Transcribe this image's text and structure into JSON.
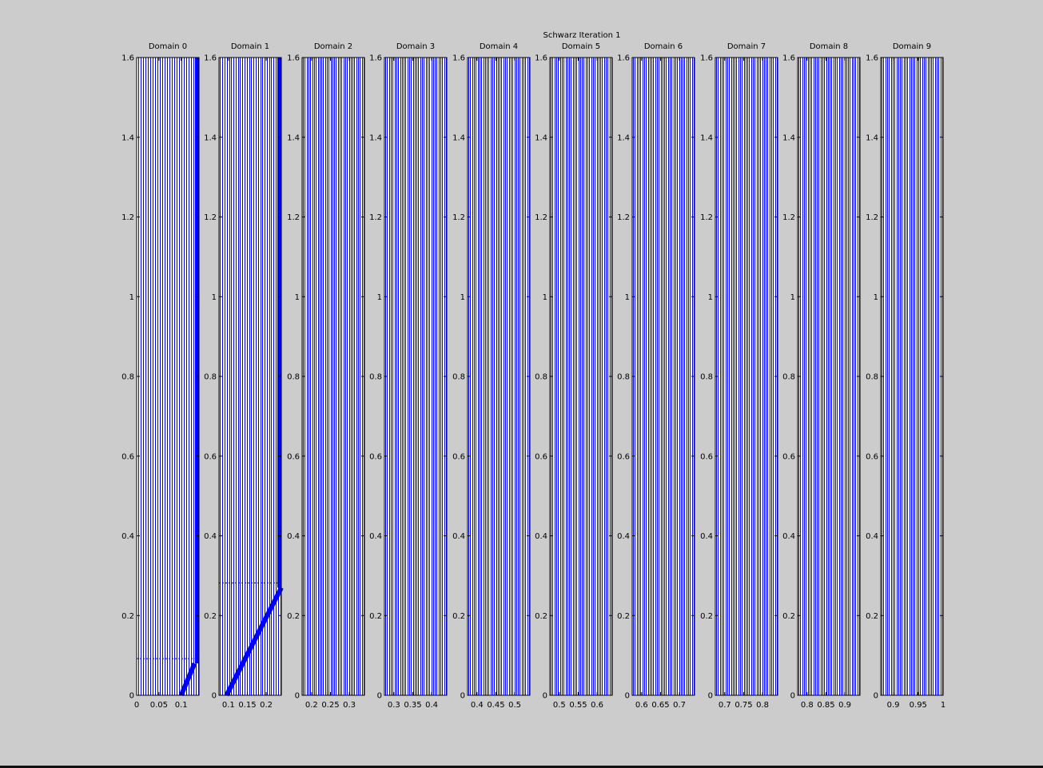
{
  "figure": {
    "title": "Schwarz Iteration 1",
    "background": "#cccccc",
    "axes_background": "#ffffff",
    "line_color": "#0000ff"
  },
  "chart_data": {
    "type": "line",
    "title": "Schwarz Iteration 1",
    "ylim": [
      0,
      1.6
    ],
    "yticks": [
      0,
      0.2,
      0.4,
      0.6,
      0.8,
      1,
      1.2,
      1.4,
      1.6
    ],
    "ytick_labels": [
      "0",
      "0.2",
      "0.4",
      "0.6",
      "0.8",
      "1",
      "1.2",
      "1.4",
      "1.6"
    ],
    "grid": false,
    "note_series": "vertical characteristic lines x(t) in each subdomain; domains 0 and 1 show a shock front",
    "panels": [
      {
        "title": "Domain 0",
        "xlim": [
          0,
          0.14
        ],
        "xticks": [
          0,
          0.05,
          0.1
        ],
        "xtick_labels": [
          "0",
          "0.05",
          "0.1"
        ],
        "line_count": 26,
        "front": {
          "x_start": 0.1,
          "x_end": 0.13,
          "t_end": 0.08
        }
      },
      {
        "title": "Domain 1",
        "xlim": [
          0.075,
          0.24
        ],
        "xticks": [
          0.1,
          0.15,
          0.2
        ],
        "xtick_labels": [
          "0.1",
          "0.15",
          "0.2"
        ],
        "line_count": 28,
        "front": {
          "x_start": 0.095,
          "x_end": 0.24,
          "t_end": 0.27
        }
      },
      {
        "title": "Domain 2",
        "xlim": [
          0.175,
          0.34
        ],
        "xticks": [
          0.2,
          0.25,
          0.3
        ],
        "xtick_labels": [
          "0.2",
          "0.25",
          "0.3"
        ],
        "line_count": 34
      },
      {
        "title": "Domain 3",
        "xlim": [
          0.275,
          0.44
        ],
        "xticks": [
          0.3,
          0.35,
          0.4
        ],
        "xtick_labels": [
          "0.3",
          "0.35",
          "0.4"
        ],
        "line_count": 34
      },
      {
        "title": "Domain 4",
        "xlim": [
          0.375,
          0.54
        ],
        "xticks": [
          0.4,
          0.45,
          0.5
        ],
        "xtick_labels": [
          "0.4",
          "0.45",
          "0.5"
        ],
        "line_count": 34
      },
      {
        "title": "Domain 5",
        "xlim": [
          0.475,
          0.64
        ],
        "xticks": [
          0.5,
          0.55,
          0.6
        ],
        "xtick_labels": [
          "0.5",
          "0.55",
          "0.6"
        ],
        "line_count": 34
      },
      {
        "title": "Domain 6",
        "xlim": [
          0.575,
          0.74
        ],
        "xticks": [
          0.6,
          0.65,
          0.7
        ],
        "xtick_labels": [
          "0.6",
          "0.65",
          "0.7"
        ],
        "line_count": 34
      },
      {
        "title": "Domain 7",
        "xlim": [
          0.675,
          0.84
        ],
        "xticks": [
          0.7,
          0.75,
          0.8
        ],
        "xtick_labels": [
          "0.7",
          "0.75",
          "0.8"
        ],
        "line_count": 34
      },
      {
        "title": "Domain 8",
        "xlim": [
          0.775,
          0.94
        ],
        "xticks": [
          0.8,
          0.85,
          0.9
        ],
        "xtick_labels": [
          "0.8",
          "0.85",
          "0.9"
        ],
        "line_count": 34
      },
      {
        "title": "Domain 9",
        "xlim": [
          0.875,
          1.0
        ],
        "xticks": [
          0.9,
          0.95,
          1.0
        ],
        "xtick_labels": [
          "0.9",
          "0.95",
          "1"
        ],
        "line_count": 34
      }
    ]
  }
}
